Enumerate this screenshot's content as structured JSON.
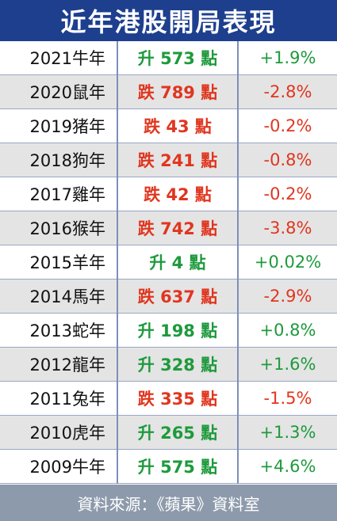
{
  "header": {
    "title": "近年港股開局表現"
  },
  "table": {
    "rows": [
      [
        "2021牛年",
        "升 573 點",
        "+1.9%"
      ],
      [
        "2020鼠年",
        "跌 789 點",
        "-2.8%"
      ],
      [
        "2019猪年",
        "跌 43 點",
        "-0.2%"
      ],
      [
        "2018狗年",
        "跌 241 點",
        "-0.8%"
      ],
      [
        "2017雞年",
        "跌 42 點",
        "-0.2%"
      ],
      [
        "2016猴年",
        "跌 742 點",
        "-3.8%"
      ],
      [
        "2015羊年",
        "升 4 點",
        "+0.02%"
      ],
      [
        "2014馬年",
        "跌 637 點",
        "-2.9%"
      ],
      [
        "2013蛇年",
        "升 198 點",
        "+0.8%"
      ],
      [
        "2012龍年",
        "升 328 點",
        "+1.6%"
      ],
      [
        "2011兔年",
        "跌 335 點",
        "-1.5%"
      ],
      [
        "2010虎年",
        "升 265 點",
        "+1.3%"
      ],
      [
        "2009牛年",
        "升 575 點",
        "+4.6%"
      ]
    ],
    "row_colors": [
      "#1e9a3c",
      "#e0361f",
      "#e0361f",
      "#e0361f",
      "#e0361f",
      "#e0361f",
      "#1e9a3c",
      "#e0361f",
      "#1e9a3c",
      "#1e9a3c",
      "#e0361f",
      "#1e9a3c",
      "#1e9a3c"
    ]
  },
  "footer": {
    "source": "資料來源：《蘋果》資料室"
  }
}
